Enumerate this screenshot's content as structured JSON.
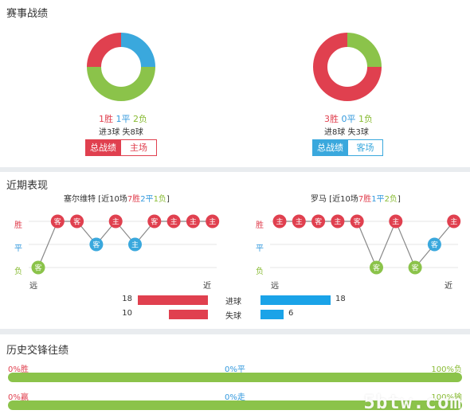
{
  "record": {
    "title": "赛事战绩",
    "home": {
      "win": "1胜",
      "draw": "1平",
      "loss": "2负",
      "goals": "进3球 失8球",
      "donut": {
        "win": 1,
        "draw": 1,
        "loss": 2
      },
      "tab_total": "总战绩",
      "tab_side": "主场"
    },
    "away": {
      "win": "3胜",
      "draw": "0平",
      "loss": "1负",
      "goals": "进8球 失3球",
      "donut": {
        "win": 3,
        "draw": 0,
        "loss": 1
      },
      "tab_total": "总战绩",
      "tab_side": "客场"
    }
  },
  "recent": {
    "title": "近期表现",
    "labels": {
      "win": "胜",
      "draw": "平",
      "loss": "负",
      "far": "远",
      "near": "近"
    },
    "home": {
      "team": "塞尔维特",
      "summary_pre": " [近10场",
      "w": "7胜",
      "d": "2平",
      "l": "1负",
      "summary_post": "]",
      "results": [
        "L",
        "W",
        "W",
        "D",
        "W",
        "D",
        "W",
        "W",
        "W",
        "W"
      ],
      "venue": [
        "客",
        "客",
        "客",
        "客",
        "主",
        "主",
        "客",
        "主",
        "主",
        "主"
      ]
    },
    "away": {
      "team": "罗马",
      "summary_pre": " [近10场",
      "w": "7胜",
      "d": "1平",
      "l": "2负",
      "summary_post": "]",
      "results": [
        "W",
        "W",
        "W",
        "W",
        "W",
        "L",
        "W",
        "L",
        "D",
        "W"
      ],
      "venue": [
        "主",
        "主",
        "客",
        "主",
        "客",
        "客",
        "主",
        "客",
        "客",
        "主"
      ]
    },
    "stats": [
      {
        "label": "进球",
        "home": 18,
        "away": 18
      },
      {
        "label": "失球",
        "home": 10,
        "away": 6
      }
    ],
    "colors": {
      "win": "#e0404f",
      "draw": "#3aa8dd",
      "loss": "#8bc34a",
      "home_bar": "#e0404f",
      "away_bar": "#1aa3e8"
    }
  },
  "h2h": {
    "title": "历史交锋往绩",
    "row1": {
      "left": "0%胜",
      "mid": "0%平",
      "right": "100%负",
      "fill": 1.0
    },
    "row2": {
      "left": "0%赢",
      "mid": "0%走",
      "right": "100%输",
      "fill": 1.0
    }
  },
  "watermark": "5btw.com"
}
